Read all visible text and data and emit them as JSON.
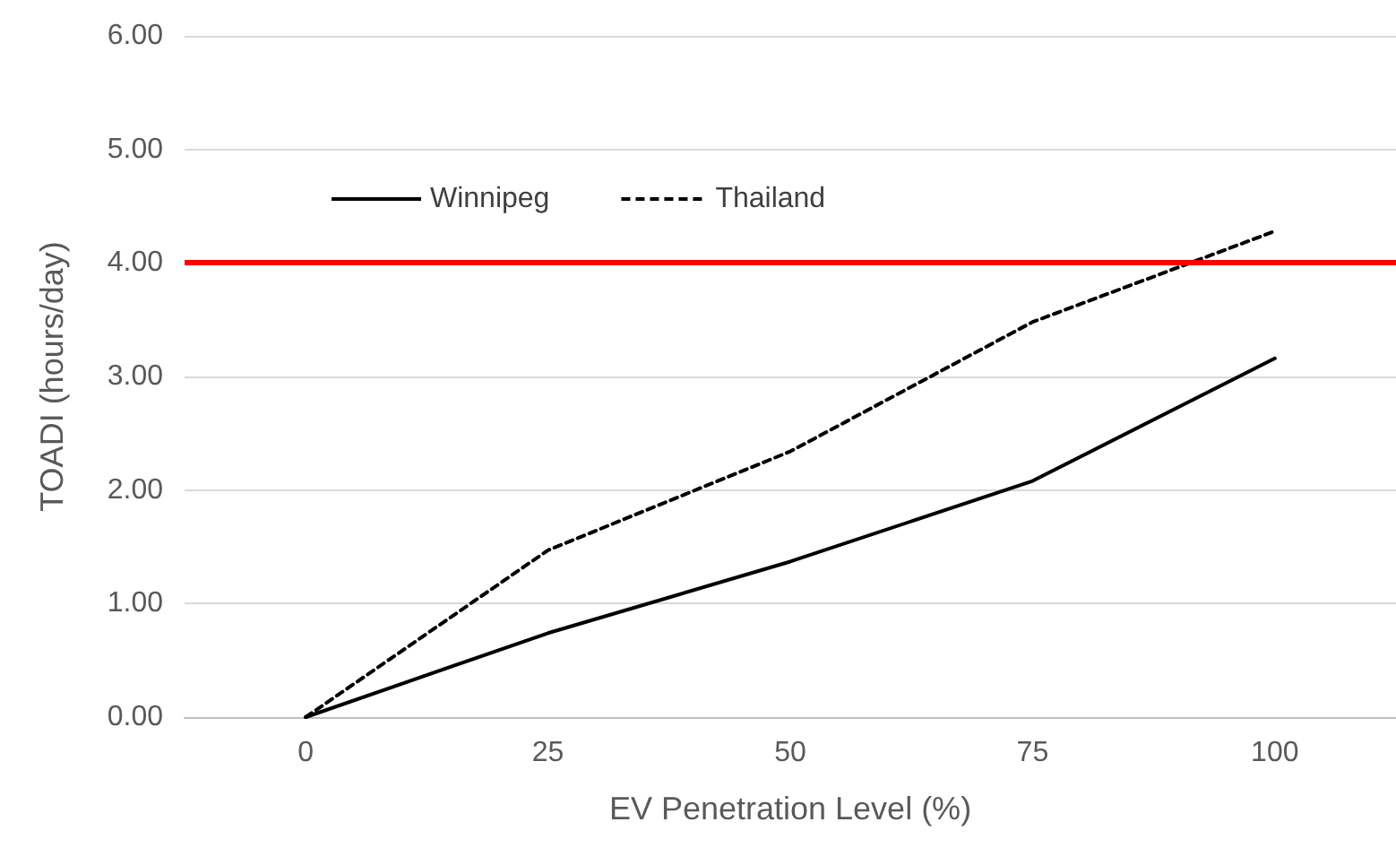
{
  "chart_data": {
    "type": "line",
    "xlabel": "EV Penetration Level (%)",
    "ylabel": "TOADI (hours/day)",
    "categories": [
      "0",
      "25",
      "50",
      "75",
      "100"
    ],
    "series": [
      {
        "name": "Winnipeg",
        "color": "#000000",
        "line_style": "solid",
        "values": [
          0,
          0.74,
          1.37,
          2.08,
          3.16
        ]
      },
      {
        "name": "Thailand",
        "color": "#000000",
        "line_style": "dashed",
        "values": [
          0,
          1.47,
          2.34,
          3.48,
          4.28
        ]
      }
    ],
    "ylim": [
      0,
      6
    ],
    "yticks": [
      {
        "value": 0,
        "label": "0.00"
      },
      {
        "value": 1,
        "label": "1.00"
      },
      {
        "value": 2,
        "label": "2.00"
      },
      {
        "value": 3,
        "label": "3.00"
      },
      {
        "value": 4,
        "label": "4.00"
      },
      {
        "value": 5,
        "label": "5.00"
      },
      {
        "value": 6,
        "label": "6.00"
      }
    ],
    "ref_lines": [
      {
        "axis": "y",
        "value": 4,
        "color": "#ff0000"
      }
    ],
    "grid": "y",
    "legend": "top left",
    "marker": "none"
  }
}
